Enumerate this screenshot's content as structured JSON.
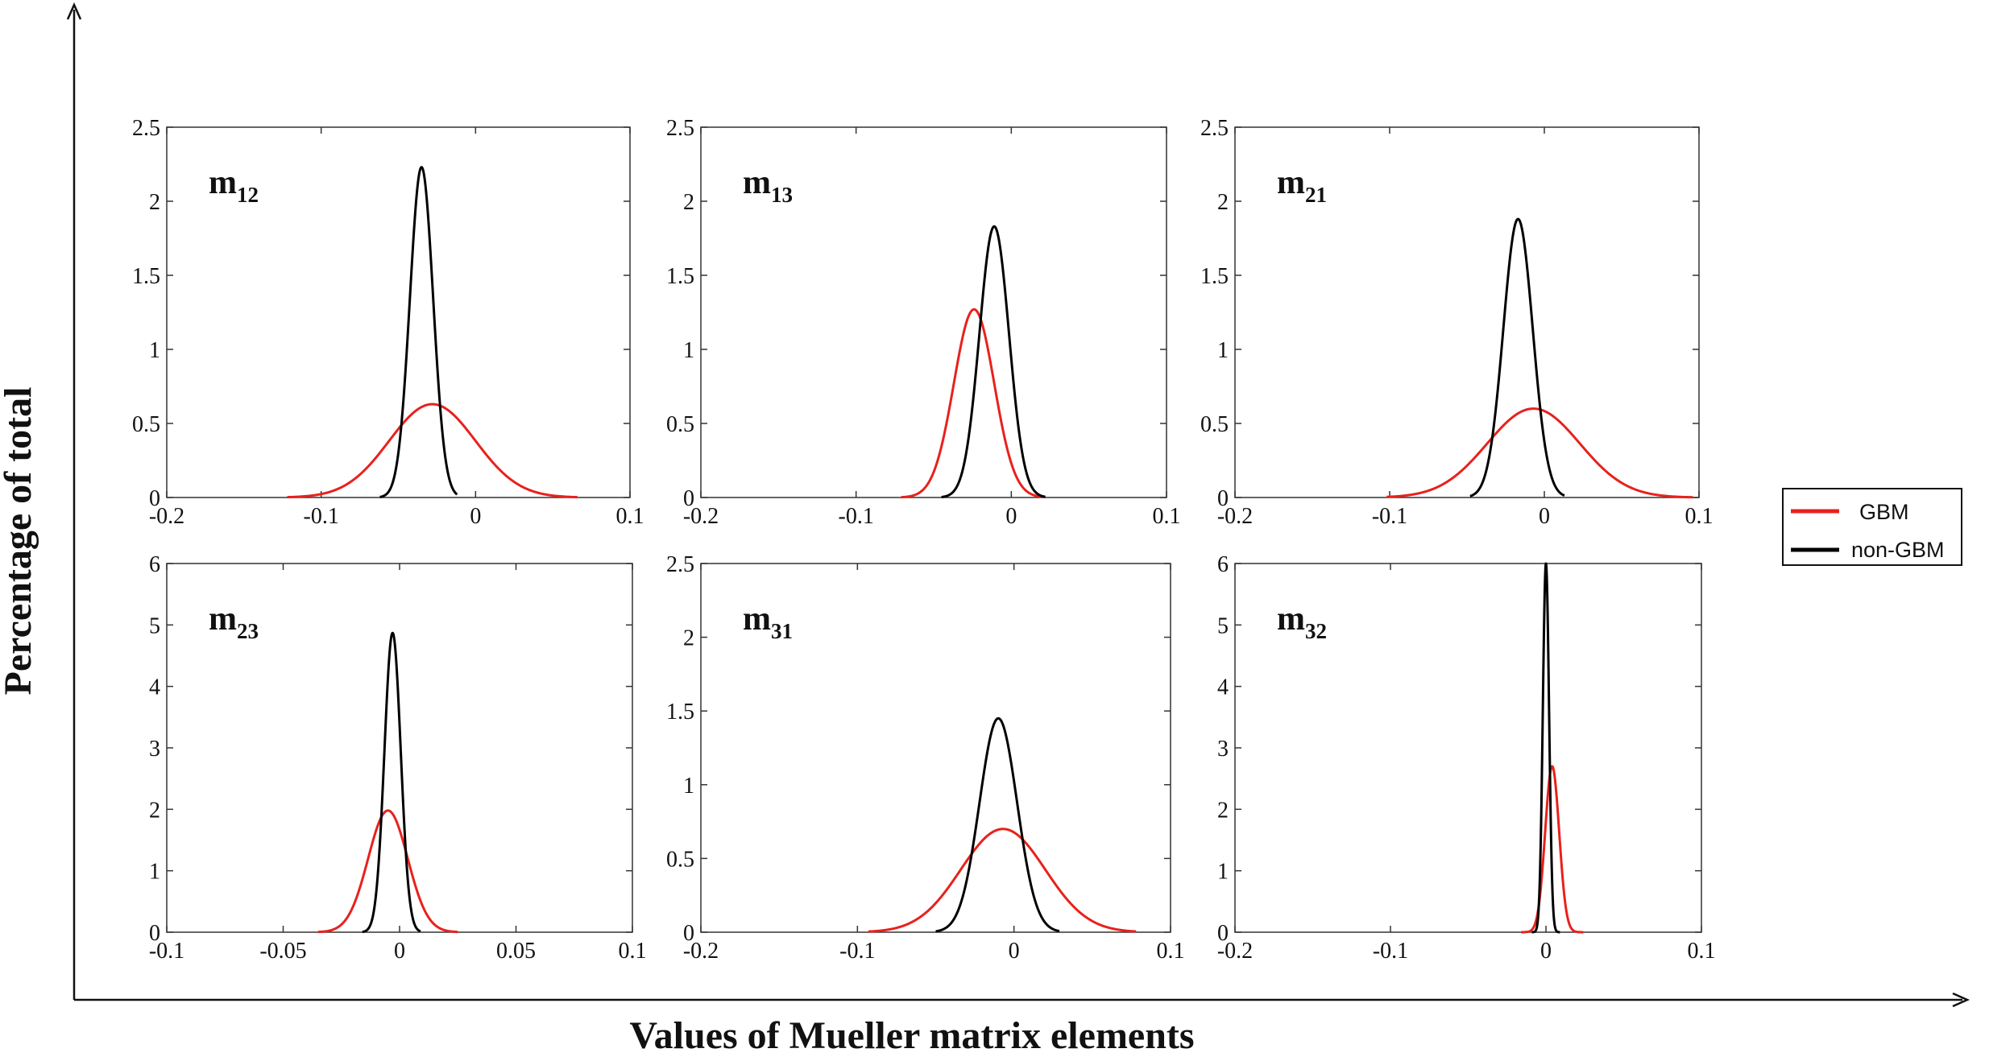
{
  "figure": {
    "xlabel": "Values of Mueller matrix elements",
    "ylabel": "Percentage of total"
  },
  "legend": {
    "entries": [
      {
        "label": "GBM",
        "color": "#e8211c"
      },
      {
        "label": "non-GBM",
        "color": "#000000"
      }
    ]
  },
  "chart_data": [
    {
      "type": "line",
      "label": "m",
      "sub": "12",
      "xlim": [
        -0.2,
        0.1
      ],
      "ylim": [
        0,
        2.5
      ],
      "xticks": [
        -0.2,
        -0.1,
        0,
        0.1
      ],
      "xtick_labels": [
        "-0.2",
        "-0.1",
        "0",
        "0.1"
      ],
      "yticks": [
        0,
        0.5,
        1,
        1.5,
        2,
        2.5
      ],
      "ytick_labels": [
        "0",
        "0.5",
        "1",
        "1.5",
        "2",
        "2.5"
      ],
      "series": [
        {
          "name": "GBM",
          "color": "#e8211c",
          "mean": -0.028,
          "peak": 0.63,
          "sigma": 0.028,
          "xmin": -0.122,
          "xmax": 0.066
        },
        {
          "name": "non-GBM",
          "color": "#000000",
          "mean": -0.035,
          "peak": 2.23,
          "sigma": 0.0075,
          "xmin": -0.062,
          "xmax": -0.012
        }
      ]
    },
    {
      "type": "line",
      "label": "m",
      "sub": "13",
      "xlim": [
        -0.2,
        0.1
      ],
      "ylim": [
        0,
        2.5
      ],
      "xticks": [
        -0.2,
        -0.1,
        0,
        0.1
      ],
      "xtick_labels": [
        "-0.2",
        "-0.1",
        "0",
        "0.1"
      ],
      "yticks": [
        0,
        0.5,
        1,
        1.5,
        2,
        2.5
      ],
      "ytick_labels": [
        "0",
        "0.5",
        "1",
        "1.5",
        "2",
        "2.5"
      ],
      "series": [
        {
          "name": "GBM",
          "color": "#e8211c",
          "mean": -0.024,
          "peak": 1.27,
          "sigma": 0.013,
          "xmin": -0.071,
          "xmax": 0.019
        },
        {
          "name": "non-GBM",
          "color": "#000000",
          "mean": -0.011,
          "peak": 1.83,
          "sigma": 0.0095,
          "xmin": -0.045,
          "xmax": 0.022
        }
      ]
    },
    {
      "type": "line",
      "label": "m",
      "sub": "21",
      "xlim": [
        -0.2,
        0.1
      ],
      "ylim": [
        0,
        2.5
      ],
      "xticks": [
        -0.2,
        -0.1,
        0,
        0.1
      ],
      "xtick_labels": [
        "-0.2",
        "-0.1",
        "0",
        "0.1"
      ],
      "yticks": [
        0,
        0.5,
        1,
        1.5,
        2,
        2.5
      ],
      "ytick_labels": [
        "0",
        "0.5",
        "1",
        "1.5",
        "2",
        "2.5"
      ],
      "series": [
        {
          "name": "GBM",
          "color": "#e8211c",
          "mean": -0.007,
          "peak": 0.6,
          "sigma": 0.03,
          "xmin": -0.102,
          "xmax": 0.096
        },
        {
          "name": "non-GBM",
          "color": "#000000",
          "mean": -0.017,
          "peak": 1.88,
          "sigma": 0.0095,
          "xmin": -0.048,
          "xmax": 0.013
        }
      ]
    },
    {
      "type": "line",
      "label": "m",
      "sub": "23",
      "xlim": [
        -0.1,
        0.1
      ],
      "ylim": [
        0,
        6
      ],
      "xticks": [
        -0.1,
        -0.05,
        0,
        0.05,
        0.1
      ],
      "xtick_labels": [
        "-0.1",
        "-0.05",
        "0",
        "0.05",
        "0.1"
      ],
      "yticks": [
        0,
        1,
        2,
        3,
        4,
        5,
        6
      ],
      "ytick_labels": [
        "0",
        "1",
        "2",
        "3",
        "4",
        "5",
        "6"
      ],
      "series": [
        {
          "name": "GBM",
          "color": "#e8211c",
          "mean": -0.005,
          "peak": 1.98,
          "sigma": 0.0085,
          "xmin": -0.035,
          "xmax": 0.025
        },
        {
          "name": "non-GBM",
          "color": "#000000",
          "mean": -0.003,
          "peak": 4.87,
          "sigma": 0.0035,
          "xmin": -0.016,
          "xmax": 0.009
        }
      ]
    },
    {
      "type": "line",
      "label": "m",
      "sub": "31",
      "xlim": [
        -0.2,
        0.1
      ],
      "ylim": [
        0,
        2.5
      ],
      "xticks": [
        -0.2,
        -0.1,
        0,
        0.1
      ],
      "xtick_labels": [
        "-0.2",
        "-0.1",
        "0",
        "0.1"
      ],
      "yticks": [
        0,
        0.5,
        1,
        1.5,
        2,
        2.5
      ],
      "ytick_labels": [
        "0",
        "0.5",
        "1",
        "1.5",
        "2",
        "2.5"
      ],
      "series": [
        {
          "name": "GBM",
          "color": "#e8211c",
          "mean": -0.007,
          "peak": 0.7,
          "sigma": 0.027,
          "xmin": -0.093,
          "xmax": 0.078
        },
        {
          "name": "non-GBM",
          "color": "#000000",
          "mean": -0.01,
          "peak": 1.45,
          "sigma": 0.012,
          "xmin": -0.05,
          "xmax": 0.029
        }
      ]
    },
    {
      "type": "line",
      "label": "m",
      "sub": "32",
      "xlim": [
        -0.2,
        0.1
      ],
      "ylim": [
        0,
        6
      ],
      "xticks": [
        -0.2,
        -0.1,
        0,
        0.1
      ],
      "xtick_labels": [
        "-0.2",
        "-0.1",
        "0",
        "0.1"
      ],
      "yticks": [
        0,
        1,
        2,
        3,
        4,
        5,
        6
      ],
      "ytick_labels": [
        "0",
        "1",
        "2",
        "3",
        "4",
        "5",
        "6"
      ],
      "series": [
        {
          "name": "GBM",
          "color": "#e8211c",
          "mean": 0.004,
          "peak": 2.7,
          "sigma": 0.0045,
          "xmin": -0.016,
          "xmax": 0.024
        },
        {
          "name": "non-GBM",
          "color": "#000000",
          "mean": 0.0,
          "peak": 6.0,
          "sigma": 0.002,
          "xmin": -0.009,
          "xmax": 0.009
        }
      ]
    }
  ]
}
